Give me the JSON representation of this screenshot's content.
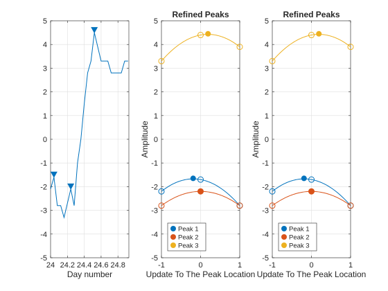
{
  "chart_data": [
    {
      "type": "line",
      "title": "",
      "xlabel": "Day number",
      "ylabel": "",
      "xlim": [
        24.0,
        24.93
      ],
      "ylim": [
        -5,
        5
      ],
      "xticks": [
        24,
        24.2,
        24.4,
        24.6,
        24.8
      ],
      "xtick_labels": [
        "24",
        "24.2",
        "24.4",
        "24.6",
        "24.8"
      ],
      "yticks": [
        -5,
        -4,
        -3,
        -2,
        -1,
        0,
        1,
        2,
        3,
        4,
        5
      ],
      "ytick_labels": [
        "-5",
        "-4",
        "-3",
        "-2",
        "-1",
        "0",
        "1",
        "2",
        "3",
        "4",
        "5"
      ],
      "grid": true,
      "series": [
        {
          "color": "#0072BD",
          "x": [
            24.0,
            24.04,
            24.08,
            24.12,
            24.16,
            24.2,
            24.24,
            24.28,
            24.32,
            24.36,
            24.4,
            24.44,
            24.48,
            24.52,
            24.56,
            24.6,
            24.64,
            24.68,
            24.72,
            24.76,
            24.8,
            24.84,
            24.88,
            24.92
          ],
          "y": [
            -2.1,
            -1.6,
            -2.8,
            -2.8,
            -3.3,
            -2.7,
            -2.1,
            -2.8,
            -1.0,
            0.0,
            1.5,
            2.8,
            3.3,
            4.5,
            3.9,
            3.3,
            3.3,
            3.3,
            2.8,
            2.8,
            2.8,
            2.8,
            3.3,
            3.3
          ]
        }
      ],
      "peak_markers": {
        "color": "#0072BD",
        "marker": "down-triangle",
        "x": [
          24.04,
          24.24,
          24.52
        ],
        "y": [
          -1.6,
          -2.1,
          4.5
        ]
      }
    },
    {
      "type": "line",
      "title": "Refined Peaks",
      "xlabel": "Update To The Peak Location",
      "ylabel": "Amplitude",
      "xlim": [
        -1,
        1
      ],
      "ylim": [
        -5,
        5
      ],
      "xticks": [
        -1,
        0,
        1
      ],
      "xtick_labels": [
        "-1",
        "0",
        "1"
      ],
      "yticks": [
        -5,
        -4,
        -3,
        -2,
        -1,
        0,
        1,
        2,
        3,
        4,
        5
      ],
      "ytick_labels": [
        "-5",
        "-4",
        "-3",
        "-2",
        "-1",
        "0",
        "1",
        "2",
        "3",
        "4",
        "5"
      ],
      "grid": true,
      "legend_placement": "bottom-left",
      "series": [
        {
          "name": "Peak 1",
          "color": "#0072BD",
          "samples_x": [
            -1,
            0,
            1
          ],
          "samples_y": [
            -2.2,
            -1.7,
            -2.8
          ],
          "refined_x": -0.19,
          "refined_y": -1.65
        },
        {
          "name": "Peak 2",
          "color": "#D95319",
          "samples_x": [
            -1,
            0,
            1
          ],
          "samples_y": [
            -2.8,
            -2.2,
            -2.8
          ],
          "refined_x": 0.0,
          "refined_y": -2.2
        },
        {
          "name": "Peak 3",
          "color": "#EDB120",
          "samples_x": [
            -1,
            0,
            1
          ],
          "samples_y": [
            3.3,
            4.4,
            3.9
          ],
          "refined_x": 0.19,
          "refined_y": 4.45
        }
      ]
    },
    {
      "type": "line",
      "title": "Refined Peaks",
      "xlabel": "Update To The Peak Location",
      "ylabel": "Amplitude",
      "xlim": [
        -1,
        1
      ],
      "ylim": [
        -5,
        5
      ],
      "xticks": [
        -1,
        0,
        1
      ],
      "xtick_labels": [
        "-1",
        "0",
        "1"
      ],
      "yticks": [
        -5,
        -4,
        -3,
        -2,
        -1,
        0,
        1,
        2,
        3,
        4,
        5
      ],
      "ytick_labels": [
        "-5",
        "-4",
        "-3",
        "-2",
        "-1",
        "0",
        "1",
        "2",
        "3",
        "4",
        "5"
      ],
      "grid": true,
      "legend_placement": "bottom-left",
      "series": [
        {
          "name": "Peak 1",
          "color": "#0072BD",
          "samples_x": [
            -1,
            0,
            1
          ],
          "samples_y": [
            -2.2,
            -1.7,
            -2.8
          ],
          "refined_x": -0.19,
          "refined_y": -1.65
        },
        {
          "name": "Peak 2",
          "color": "#D95319",
          "samples_x": [
            -1,
            0,
            1
          ],
          "samples_y": [
            -2.8,
            -2.2,
            -2.8
          ],
          "refined_x": 0.0,
          "refined_y": -2.2
        },
        {
          "name": "Peak 3",
          "color": "#EDB120",
          "samples_x": [
            -1,
            0,
            1
          ],
          "samples_y": [
            3.3,
            4.4,
            3.9
          ],
          "refined_x": 0.19,
          "refined_y": 4.45
        }
      ]
    }
  ]
}
